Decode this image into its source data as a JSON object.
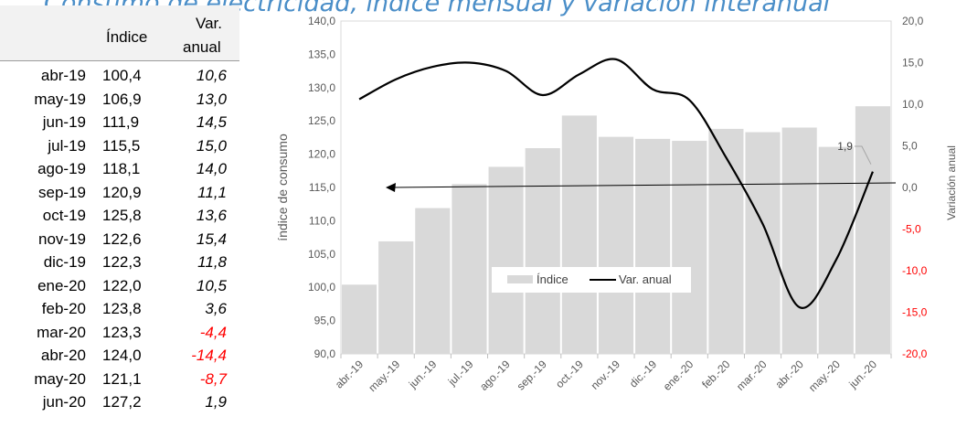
{
  "title": "Consumo de electricidad, índice mensual y variación interanual",
  "table": {
    "header_indice": "Índice",
    "header_var_line1": "Var.",
    "header_var_line2": "anual",
    "rows": [
      {
        "month": "abr-19",
        "indice": "100,4",
        "var": "10,6"
      },
      {
        "month": "may-19",
        "indice": "106,9",
        "var": "13,0"
      },
      {
        "month": "jun-19",
        "indice": "111,9",
        "var": "14,5"
      },
      {
        "month": "jul-19",
        "indice": "115,5",
        "var": "15,0"
      },
      {
        "month": "ago-19",
        "indice": "118,1",
        "var": "14,0"
      },
      {
        "month": "sep-19",
        "indice": "120,9",
        "var": "11,1"
      },
      {
        "month": "oct-19",
        "indice": "125,8",
        "var": "13,6"
      },
      {
        "month": "nov-19",
        "indice": "122,6",
        "var": "15,4"
      },
      {
        "month": "dic-19",
        "indice": "122,3",
        "var": "11,8"
      },
      {
        "month": "ene-20",
        "indice": "122,0",
        "var": "10,5"
      },
      {
        "month": "feb-20",
        "indice": "123,8",
        "var": "3,6"
      },
      {
        "month": "mar-20",
        "indice": "123,3",
        "var": "-4,4"
      },
      {
        "month": "abr-20",
        "indice": "124,0",
        "var": "-14,4"
      },
      {
        "month": "may-20",
        "indice": "121,1",
        "var": "-8,7"
      },
      {
        "month": "jun-20",
        "indice": "127,2",
        "var": "1,9"
      }
    ]
  },
  "chart_data": {
    "type": "bar",
    "categories": [
      "abr.-19",
      "may.-19",
      "jun.-19",
      "jul.-19",
      "ago.-19",
      "sep.-19",
      "oct.-19",
      "nov.-19",
      "dic.-19",
      "ene.-20",
      "feb.-20",
      "mar.-20",
      "abr.-20",
      "may.-20",
      "jun.-20"
    ],
    "series": [
      {
        "name": "Índice",
        "type": "bar",
        "axis": "left",
        "values": [
          100.4,
          106.9,
          111.9,
          115.5,
          118.1,
          120.9,
          125.8,
          122.6,
          122.3,
          122.0,
          123.8,
          123.3,
          124.0,
          121.1,
          127.2
        ]
      },
      {
        "name": "Var. anual",
        "type": "line",
        "axis": "right",
        "values": [
          10.6,
          13.0,
          14.5,
          15.0,
          14.0,
          11.1,
          13.6,
          15.4,
          11.8,
          10.5,
          3.6,
          -4.4,
          -14.4,
          -8.7,
          1.9
        ]
      }
    ],
    "ylabel": "índice de consumo",
    "y2label": "Variación anual",
    "ylim": [
      90,
      140
    ],
    "y2lim": [
      -20,
      20
    ],
    "yticks": [
      "90,0",
      "95,0",
      "100,0",
      "105,0",
      "110,0",
      "115,0",
      "120,0",
      "125,0",
      "130,0",
      "135,0",
      "140,0"
    ],
    "y2ticks": [
      "-20,0",
      "-15,0",
      "-10,0",
      "-5,0",
      "0,0",
      "5,0",
      "10,0",
      "15,0",
      "20,0"
    ],
    "data_label": "1,9",
    "legend_position": "inside-center",
    "gridlines": false,
    "colors": {
      "bar": "#d9d9d9",
      "line": "#000000",
      "negative_tick": "#ff0000"
    }
  }
}
